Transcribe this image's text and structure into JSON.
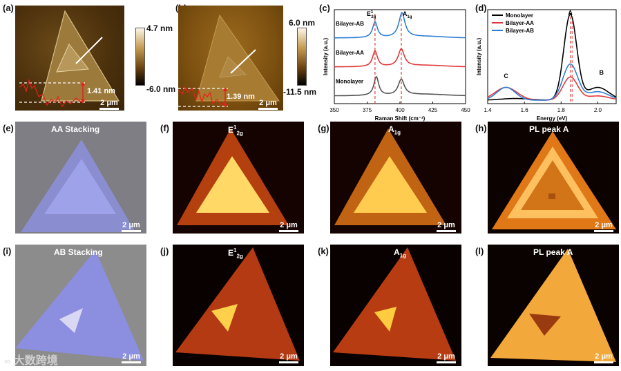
{
  "panels": {
    "a": {
      "label": "(a)",
      "colorbar_max": "4.7 nm",
      "colorbar_min": "-6.0 nm",
      "step": "1.41 nm",
      "scale": "2 μm"
    },
    "b": {
      "label": "(b)",
      "colorbar_max": "6.0 nm",
      "colorbar_min": "-11.5 nm",
      "step": "1.39 nm",
      "scale": "2 μm"
    },
    "c": {
      "label": "(c)"
    },
    "d": {
      "label": "(d)"
    },
    "e": {
      "label": "(e)",
      "title": "AA Stacking",
      "scale": "2 μm"
    },
    "f": {
      "label": "(f)",
      "title_main": "E",
      "title_sup": "1",
      "title_sub": "2g",
      "scale": "2 μm"
    },
    "g": {
      "label": "(g)",
      "title_main": "A",
      "title_sub": "1g",
      "scale": "2 μm"
    },
    "h": {
      "label": "(h)",
      "title": "PL peak A",
      "scale": "2 μm"
    },
    "i": {
      "label": "(i)",
      "title": "AB Stacking",
      "scale": "2 μm"
    },
    "j": {
      "label": "(j)",
      "title_main": "E",
      "title_sup": "1",
      "title_sub": "2g",
      "scale": "2 μm"
    },
    "k": {
      "label": "(k)",
      "title_main": "A",
      "title_sub": "1g",
      "scale": "2 μm"
    },
    "l": {
      "label": "(l)",
      "title": "PL peak A",
      "scale": "2 μm"
    }
  },
  "watermark": "大数跨境",
  "chart_data": [
    {
      "id": "c",
      "type": "line",
      "xlabel": "Raman Shift (cm⁻¹)",
      "ylabel": "Intensity (a.u.)",
      "xlim": [
        350,
        450
      ],
      "xticks": [
        350,
        375,
        400,
        425,
        450
      ],
      "peaks": {
        "E2g": 381,
        "A1g": 401
      },
      "peak_label_E": "E",
      "peak_label_E_sup": "1",
      "peak_label_E_sub": "2g",
      "peak_label_A": "A",
      "peak_label_A_sub": "1g",
      "series": [
        {
          "name": "Bilayer-AB",
          "color": "#2f7fd6",
          "offset": 2.0,
          "e_peak": 381,
          "a_peak": 401.5,
          "e_height": 0.55,
          "a_height": 0.85
        },
        {
          "name": "Bilayer-AA",
          "color": "#e0393b",
          "offset": 1.0,
          "e_peak": 381,
          "a_peak": 401,
          "e_height": 0.55,
          "a_height": 0.6
        },
        {
          "name": "Monolayer",
          "color": "#555555",
          "offset": 0.0,
          "e_peak": 382,
          "a_peak": 401,
          "e_height": 0.65,
          "a_height": 0.55
        }
      ]
    },
    {
      "id": "d",
      "type": "line",
      "xlabel": "Energy (eV)",
      "ylabel": "Intensity (a.u.)",
      "xlim": [
        1.4,
        2.1
      ],
      "xticks": [
        1.4,
        1.6,
        1.8,
        2.0
      ],
      "peak_labels": [
        {
          "text": "A",
          "x": 1.85
        },
        {
          "text": "B",
          "x": 2.02
        },
        {
          "text": "C",
          "x": 1.5
        }
      ],
      "series": [
        {
          "name": "Monolayer",
          "color": "#000000",
          "components": [
            [
              1.85,
              1.0,
              0.035
            ],
            [
              2.0,
              0.15,
              0.06
            ],
            [
              1.55,
              0.02,
              0.08
            ]
          ]
        },
        {
          "name": "Bilayer-AA",
          "color": "#e0393b",
          "components": [
            [
              1.85,
              0.27,
              0.04
            ],
            [
              1.5,
              0.15,
              0.06
            ],
            [
              2.0,
              0.05,
              0.06
            ]
          ]
        },
        {
          "name": "Bilayer-AB",
          "color": "#2f7fd6",
          "components": [
            [
              1.85,
              0.42,
              0.04
            ],
            [
              1.5,
              0.15,
              0.05
            ],
            [
              2.0,
              0.1,
              0.06
            ]
          ]
        }
      ]
    }
  ]
}
